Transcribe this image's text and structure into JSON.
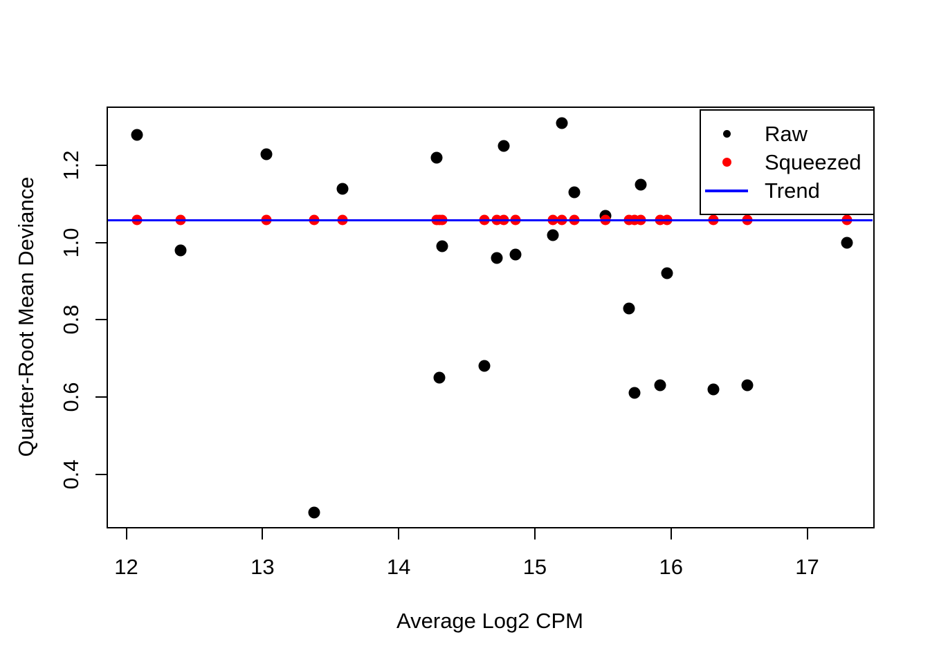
{
  "figure": {
    "title": "",
    "x_axis_title": "Average Log2 CPM",
    "y_axis_title": "Quarter-Root Mean Deviance",
    "background_color": "#ffffff",
    "border_color": "#000000"
  },
  "legend": {
    "position": "top-right",
    "items": [
      {
        "label": "Raw",
        "marker": "dot",
        "color": "#000000"
      },
      {
        "label": "Squeezed",
        "marker": "dot",
        "color": "#ff0000"
      },
      {
        "label": "Trend",
        "marker": "line",
        "color": "#0000ff"
      }
    ]
  },
  "chart_data": {
    "type": "scatter",
    "title": "",
    "xlabel": "Average Log2 CPM",
    "ylabel": "Quarter-Root Mean Deviance",
    "xlim": [
      11.86,
      17.485
    ],
    "ylim": [
      0.263,
      1.351
    ],
    "grid": false,
    "legend_position": "top-right",
    "x_ticks": [
      12,
      13,
      14,
      15,
      16,
      17
    ],
    "x_tick_labels": [
      "12",
      "13",
      "14",
      "15",
      "16",
      "17"
    ],
    "y_ticks": [
      0.4,
      0.6,
      0.8,
      1.0,
      1.2
    ],
    "y_tick_labels": [
      "0.4",
      "0.6",
      "0.8",
      "1.0",
      "1.2"
    ],
    "x": [
      12.08,
      12.4,
      13.03,
      13.38,
      13.59,
      14.28,
      14.3,
      14.32,
      14.63,
      14.72,
      14.77,
      14.86,
      15.13,
      15.2,
      15.29,
      15.52,
      15.69,
      15.73,
      15.78,
      15.92,
      15.97,
      16.31,
      16.56,
      17.29
    ],
    "series": [
      {
        "name": "Raw",
        "type": "points",
        "color": "#000000",
        "values": [
          1.28,
          0.98,
          1.23,
          0.3,
          1.14,
          1.22,
          0.65,
          0.99,
          0.68,
          0.96,
          1.25,
          0.97,
          1.02,
          1.31,
          1.13,
          1.07,
          0.83,
          0.61,
          1.15,
          0.63,
          0.92,
          0.62,
          0.63,
          1.0
        ]
      },
      {
        "name": "Squeezed",
        "type": "points",
        "color": "#ff0000",
        "values": [
          1.058,
          1.058,
          1.058,
          1.058,
          1.058,
          1.058,
          1.058,
          1.058,
          1.058,
          1.058,
          1.058,
          1.058,
          1.058,
          1.058,
          1.058,
          1.058,
          1.058,
          1.058,
          1.058,
          1.058,
          1.058,
          1.058,
          1.058,
          1.058
        ]
      },
      {
        "name": "Trend",
        "type": "hline",
        "color": "#0000ff",
        "y": 1.058
      }
    ]
  }
}
